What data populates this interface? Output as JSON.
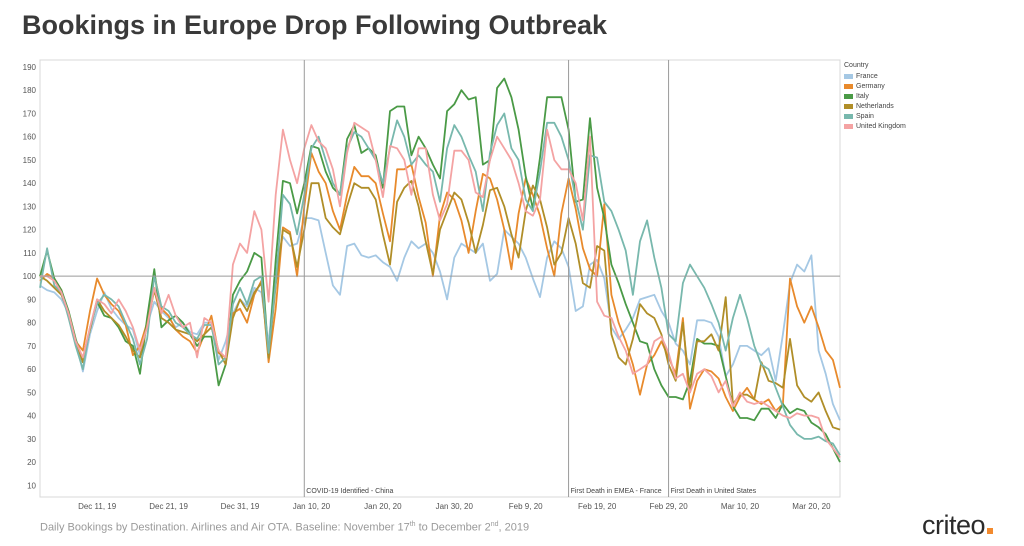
{
  "title": "Bookings in Europe Drop Following Outbreak",
  "caption": {
    "text_before": "Daily Bookings by Destination. Airlines and Air OTA. Baseline: November 17",
    "sup1": "th",
    "text_mid": " to December 2",
    "sup2": "nd",
    "text_after": ", 2019"
  },
  "logo": "criteo",
  "colors": {
    "France": "#a5c8e4",
    "Germany": "#e88a2c",
    "Italy": "#4a9a46",
    "Netherlands": "#b08e28",
    "Spain": "#78b8ad",
    "United Kingdom": "#f4a3a3",
    "accent": "#f28a2e"
  },
  "chart_data": {
    "type": "line",
    "x_start": "Dec 3, 19",
    "x_end": "Mar 22, 20",
    "ylim": [
      5,
      193
    ],
    "yticks": [
      10,
      20,
      30,
      40,
      50,
      60,
      70,
      80,
      90,
      100,
      110,
      120,
      130,
      140,
      150,
      160,
      170,
      180,
      190
    ],
    "xticks": [
      {
        "day": 8,
        "label": "Dec 11, 19"
      },
      {
        "day": 18,
        "label": "Dec 21, 19"
      },
      {
        "day": 28,
        "label": "Dec 31, 19"
      },
      {
        "day": 38,
        "label": "Jan 10, 20"
      },
      {
        "day": 48,
        "label": "Jan 20, 20"
      },
      {
        "day": 58,
        "label": "Jan 30, 20"
      },
      {
        "day": 68,
        "label": "Feb 9, 20"
      },
      {
        "day": 78,
        "label": "Feb 19, 20"
      },
      {
        "day": 88,
        "label": "Feb 29, 20"
      },
      {
        "day": 98,
        "label": "Mar 10, 20"
      },
      {
        "day": 108,
        "label": "Mar 20, 20"
      }
    ],
    "baseline": 100,
    "legend_title": "Country",
    "legend_position": "top-right",
    "annotations": [
      {
        "day": 37,
        "label": "COVID-19 Identified - China"
      },
      {
        "day": 74,
        "label": "First Death in EMEA - France"
      },
      {
        "day": 88,
        "label": "First Death in United States"
      }
    ],
    "series": [
      {
        "name": "France",
        "values": [
          96,
          94,
          93,
          90,
          84,
          72,
          59,
          75,
          85,
          93,
          86,
          82,
          79,
          77,
          66,
          79,
          89,
          85,
          82,
          78,
          80,
          76,
          75,
          80,
          80,
          64,
          72,
          84,
          90,
          87,
          95,
          93,
          71,
          105,
          117,
          113,
          114,
          125,
          125,
          124,
          110,
          96,
          92,
          113,
          114,
          109,
          108,
          109,
          106,
          104,
          98,
          108,
          115,
          112,
          114,
          110,
          102,
          90,
          108,
          114,
          112,
          110,
          114,
          98,
          101,
          120,
          117,
          114,
          108,
          99,
          91,
          108,
          115,
          112,
          104,
          85,
          87,
          105,
          107,
          99,
          78,
          73,
          77,
          82,
          90,
          91,
          92,
          85,
          80,
          71,
          68,
          62,
          81,
          81,
          80,
          74,
          57,
          62,
          70,
          70,
          68,
          66,
          69,
          55,
          75,
          97,
          105,
          102,
          109,
          68,
          58,
          45,
          38
        ]
      },
      {
        "name": "Germany",
        "values": [
          98,
          101,
          99,
          94,
          83,
          72,
          68,
          85,
          99,
          92,
          88,
          85,
          79,
          66,
          70,
          80,
          101,
          86,
          83,
          77,
          74,
          72,
          67,
          75,
          83,
          67,
          65,
          84,
          86,
          80,
          92,
          98,
          63,
          86,
          121,
          119,
          100,
          130,
          153,
          145,
          140,
          128,
          120,
          135,
          147,
          143,
          143,
          140,
          127,
          115,
          146,
          146,
          148,
          134,
          123,
          100,
          126,
          136,
          133,
          124,
          110,
          128,
          144,
          142,
          133,
          120,
          103,
          127,
          142,
          135,
          126,
          112,
          100,
          127,
          142,
          129,
          112,
          103,
          100,
          131,
          92,
          80,
          72,
          62,
          49,
          62,
          66,
          72,
          65,
          58,
          82,
          43,
          55,
          60,
          59,
          56,
          48,
          42,
          48,
          52,
          47,
          45,
          47,
          42,
          45,
          99,
          87,
          80,
          87,
          78,
          68,
          64,
          52
        ]
      },
      {
        "name": "Italy",
        "values": [
          100,
          111,
          99,
          94,
          85,
          73,
          63,
          77,
          89,
          83,
          82,
          78,
          72,
          70,
          58,
          82,
          103,
          78,
          81,
          83,
          80,
          75,
          70,
          74,
          74,
          53,
          62,
          92,
          98,
          102,
          110,
          108,
          65,
          107,
          141,
          140,
          127,
          140,
          156,
          155,
          145,
          138,
          135,
          159,
          165,
          153,
          155,
          152,
          138,
          171,
          173,
          173,
          152,
          160,
          155,
          148,
          142,
          171,
          174,
          180,
          176,
          177,
          148,
          150,
          181,
          185,
          177,
          163,
          143,
          129,
          151,
          177,
          177,
          177,
          163,
          132,
          133,
          168,
          138,
          125,
          105,
          97,
          88,
          80,
          72,
          71,
          60,
          53,
          48,
          48,
          47,
          55,
          73,
          71,
          71,
          70,
          57,
          44,
          39,
          39,
          38,
          43,
          43,
          39,
          45,
          41,
          43,
          42,
          37,
          35,
          32,
          26,
          20
        ]
      },
      {
        "name": "Netherlands",
        "values": [
          100,
          98,
          95,
          92,
          84,
          72,
          63,
          77,
          90,
          85,
          82,
          79,
          74,
          68,
          65,
          79,
          94,
          82,
          80,
          77,
          76,
          75,
          72,
          75,
          78,
          68,
          62,
          82,
          90,
          85,
          93,
          97,
          65,
          96,
          120,
          118,
          104,
          120,
          140,
          140,
          125,
          121,
          118,
          130,
          140,
          138,
          138,
          133,
          118,
          105,
          132,
          138,
          141,
          130,
          115,
          101,
          120,
          128,
          136,
          133,
          123,
          110,
          122,
          137,
          138,
          130,
          118,
          108,
          128,
          139,
          133,
          121,
          105,
          110,
          125,
          114,
          97,
          95,
          113,
          111,
          75,
          65,
          62,
          73,
          88,
          84,
          82,
          75,
          62,
          55,
          80,
          50,
          72,
          72,
          75,
          68,
          91,
          45,
          49,
          49,
          47,
          63,
          55,
          54,
          52,
          73,
          53,
          48,
          46,
          50,
          42,
          35,
          34
        ]
      },
      {
        "name": "Spain",
        "values": [
          95,
          112,
          96,
          93,
          82,
          70,
          60,
          78,
          88,
          92,
          90,
          87,
          80,
          73,
          62,
          73,
          100,
          87,
          85,
          80,
          78,
          75,
          73,
          79,
          79,
          62,
          65,
          88,
          95,
          88,
          98,
          100,
          67,
          97,
          135,
          131,
          118,
          135,
          155,
          160,
          150,
          140,
          135,
          155,
          162,
          160,
          155,
          150,
          140,
          155,
          167,
          160,
          148,
          152,
          148,
          145,
          132,
          155,
          165,
          160,
          152,
          145,
          128,
          153,
          165,
          170,
          155,
          150,
          133,
          128,
          145,
          166,
          166,
          160,
          150,
          133,
          120,
          152,
          151,
          132,
          128,
          120,
          111,
          92,
          115,
          124,
          108,
          95,
          75,
          72,
          97,
          105,
          100,
          95,
          88,
          80,
          68,
          82,
          92,
          82,
          70,
          62,
          60,
          52,
          44,
          36,
          32,
          30,
          30,
          31,
          29,
          28,
          23
        ]
      },
      {
        "name": "United Kingdom",
        "values": [
          100,
          100,
          98,
          93,
          84,
          72,
          65,
          78,
          90,
          88,
          84,
          90,
          85,
          78,
          68,
          78,
          95,
          84,
          92,
          83,
          78,
          80,
          65,
          82,
          80,
          68,
          65,
          105,
          114,
          110,
          128,
          120,
          89,
          135,
          163,
          150,
          140,
          155,
          165,
          158,
          155,
          146,
          130,
          153,
          166,
          164,
          162,
          150,
          134,
          156,
          155,
          150,
          135,
          155,
          155,
          135,
          124,
          131,
          154,
          154,
          150,
          136,
          134,
          150,
          160,
          155,
          150,
          140,
          128,
          126,
          133,
          163,
          150,
          146,
          146,
          140,
          124,
          160,
          89,
          83,
          82,
          74,
          68,
          58,
          60,
          62,
          72,
          74,
          67,
          56,
          58,
          50,
          58,
          60,
          57,
          50,
          55,
          44,
          50,
          46,
          45,
          46,
          44,
          42,
          40,
          39,
          41,
          40,
          40,
          39,
          30,
          26,
          22
        ]
      }
    ]
  }
}
